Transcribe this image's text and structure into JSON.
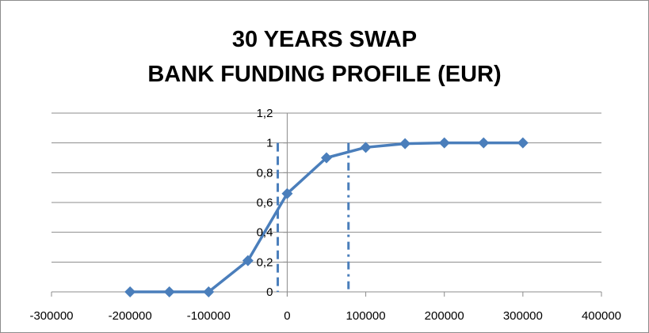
{
  "chart_data": {
    "type": "line",
    "title": "30 YEARS SWAP",
    "subtitle": "BANK FUNDING PROFILE (EUR)",
    "xlabel": "",
    "ylabel": "",
    "xlim": [
      -300000,
      400000
    ],
    "ylim": [
      0,
      1.2
    ],
    "x_ticks": [
      -300000,
      -200000,
      -100000,
      0,
      100000,
      200000,
      300000,
      400000
    ],
    "x_tick_labels": [
      "-300000",
      "-200000",
      "-100000",
      "0",
      "100000",
      "200000",
      "300000",
      "400000"
    ],
    "y_ticks": [
      0,
      0.2,
      0.4,
      0.6,
      0.8,
      1,
      1.2
    ],
    "y_tick_labels": [
      "0",
      "0,2",
      "0,4",
      "0,6",
      "0,8",
      "1",
      "1,2"
    ],
    "grid": "horizontal",
    "legend": "none",
    "series": [
      {
        "color": "#4a7ebb",
        "marker": "diamond",
        "x": [
          -200000,
          -150000,
          -100000,
          -50000,
          0,
          50000,
          100000,
          150000,
          200000,
          250000,
          300000
        ],
        "y": [
          0,
          0,
          0,
          0.21,
          0.66,
          0.9,
          0.97,
          0.995,
          1,
          1,
          1
        ]
      }
    ],
    "reference_lines": [
      {
        "x": -12000,
        "style": "dashed",
        "color": "#4a7ebb"
      },
      {
        "x": 78000,
        "style": "dash-dot",
        "color": "#4a7ebb"
      }
    ]
  }
}
